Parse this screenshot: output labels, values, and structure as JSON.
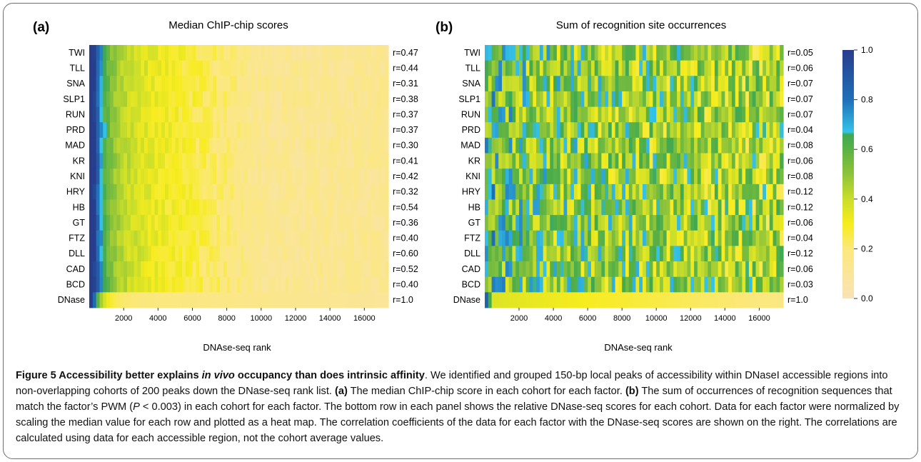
{
  "chart_data": [
    {
      "type": "heatmap",
      "panel_label": "(a)",
      "title": "Median ChIP-chip scores",
      "xlabel": "DNAse-seq rank",
      "ylabel": "",
      "xlim": [
        0,
        17400
      ],
      "x_ticks": [
        2000,
        4000,
        6000,
        8000,
        10000,
        12000,
        14000,
        16000
      ],
      "rows": [
        "TWI",
        "TLL",
        "SNA",
        "SLP1",
        "RUN",
        "PRD",
        "MAD",
        "KR",
        "KNI",
        "HRY",
        "HB",
        "GT",
        "FTZ",
        "DLL",
        "CAD",
        "BCD",
        "DNase"
      ],
      "correlations": [
        "r=0.47",
        "r=0.44",
        "r=0.31",
        "r=0.38",
        "r=0.37",
        "r=0.37",
        "r=0.30",
        "r=0.41",
        "r=0.42",
        "r=0.32",
        "r=0.54",
        "r=0.36",
        "r=0.40",
        "r=0.60",
        "r=0.52",
        "r=0.40",
        "r=1.0"
      ],
      "value_range": [
        0,
        1
      ]
    },
    {
      "type": "heatmap",
      "panel_label": "(b)",
      "title": "Sum of recognition site occurrences",
      "xlabel": "DNAse-seq rank",
      "ylabel": "",
      "xlim": [
        0,
        17400
      ],
      "x_ticks": [
        2000,
        4000,
        6000,
        8000,
        10000,
        12000,
        14000,
        16000
      ],
      "rows": [
        "TWI",
        "TLL",
        "SNA",
        "SLP1",
        "RUN",
        "PRD",
        "MAD",
        "KR",
        "KNI",
        "HRY",
        "HB",
        "GT",
        "FTZ",
        "DLL",
        "CAD",
        "BCD",
        "DNase"
      ],
      "correlations": [
        "r=0.05",
        "r=0.06",
        "r=0.07",
        "r=0.07",
        "r=0.07",
        "r=0.04",
        "r=0.08",
        "r=0.06",
        "r=0.08",
        "r=0.12",
        "r=0.12",
        "r=0.06",
        "r=0.04",
        "r=0.12",
        "r=0.06",
        "r=0.03",
        "r=1.0"
      ],
      "value_range": [
        0,
        1
      ]
    }
  ],
  "colorbar": {
    "ticks": [
      "1.0",
      "0.8",
      "0.6",
      "0.4",
      "0.2",
      "0.0"
    ],
    "tick_values": [
      1.0,
      0.8,
      0.6,
      0.4,
      0.2,
      0.0
    ],
    "stops": [
      {
        "v": 0.0,
        "color": "#f9e2b6"
      },
      {
        "v": 0.2,
        "color": "#fbe87c"
      },
      {
        "v": 0.3,
        "color": "#f7ec1e"
      },
      {
        "v": 0.4,
        "color": "#c9de2a"
      },
      {
        "v": 0.5,
        "color": "#8ec43a"
      },
      {
        "v": 0.6,
        "color": "#5ab245"
      },
      {
        "v": 0.66,
        "color": "#3fa852"
      },
      {
        "v": 0.67,
        "color": "#35c3e8"
      },
      {
        "v": 0.8,
        "color": "#1f6fb8"
      },
      {
        "v": 1.0,
        "color": "#283d8c"
      }
    ]
  },
  "caption": {
    "title_part1": "Figure 5 Accessibility better explains ",
    "title_italic": "in vivo",
    "title_part2": " occupancy than does intrinsic affinity",
    "text1": ". We identified and grouped 150-bp local peaks of accessibility within DNaseI accessible regions into non-overlapping cohorts of 200 peaks down the DNase-seq rank list. ",
    "label_a": "(a)",
    "text2": " The median ChIP-chip score in each cohort for each factor. ",
    "label_b": "(b)",
    "text3": " The sum of occurrences of recognition sequences that match the factor’s PWM (",
    "p_symbol": "P",
    "text4": " < 0.003) in each cohort for each factor. The bottom row in each panel shows the relative DNase-seq scores for each cohort. Data for each factor were normalized by scaling the median value for each row and plotted as a heat map. The correlation coefficients of the data for each factor with the DNase-seq scores are shown on the right. The correlations are calculated using data for each accessible region, not the cohort average values."
  }
}
